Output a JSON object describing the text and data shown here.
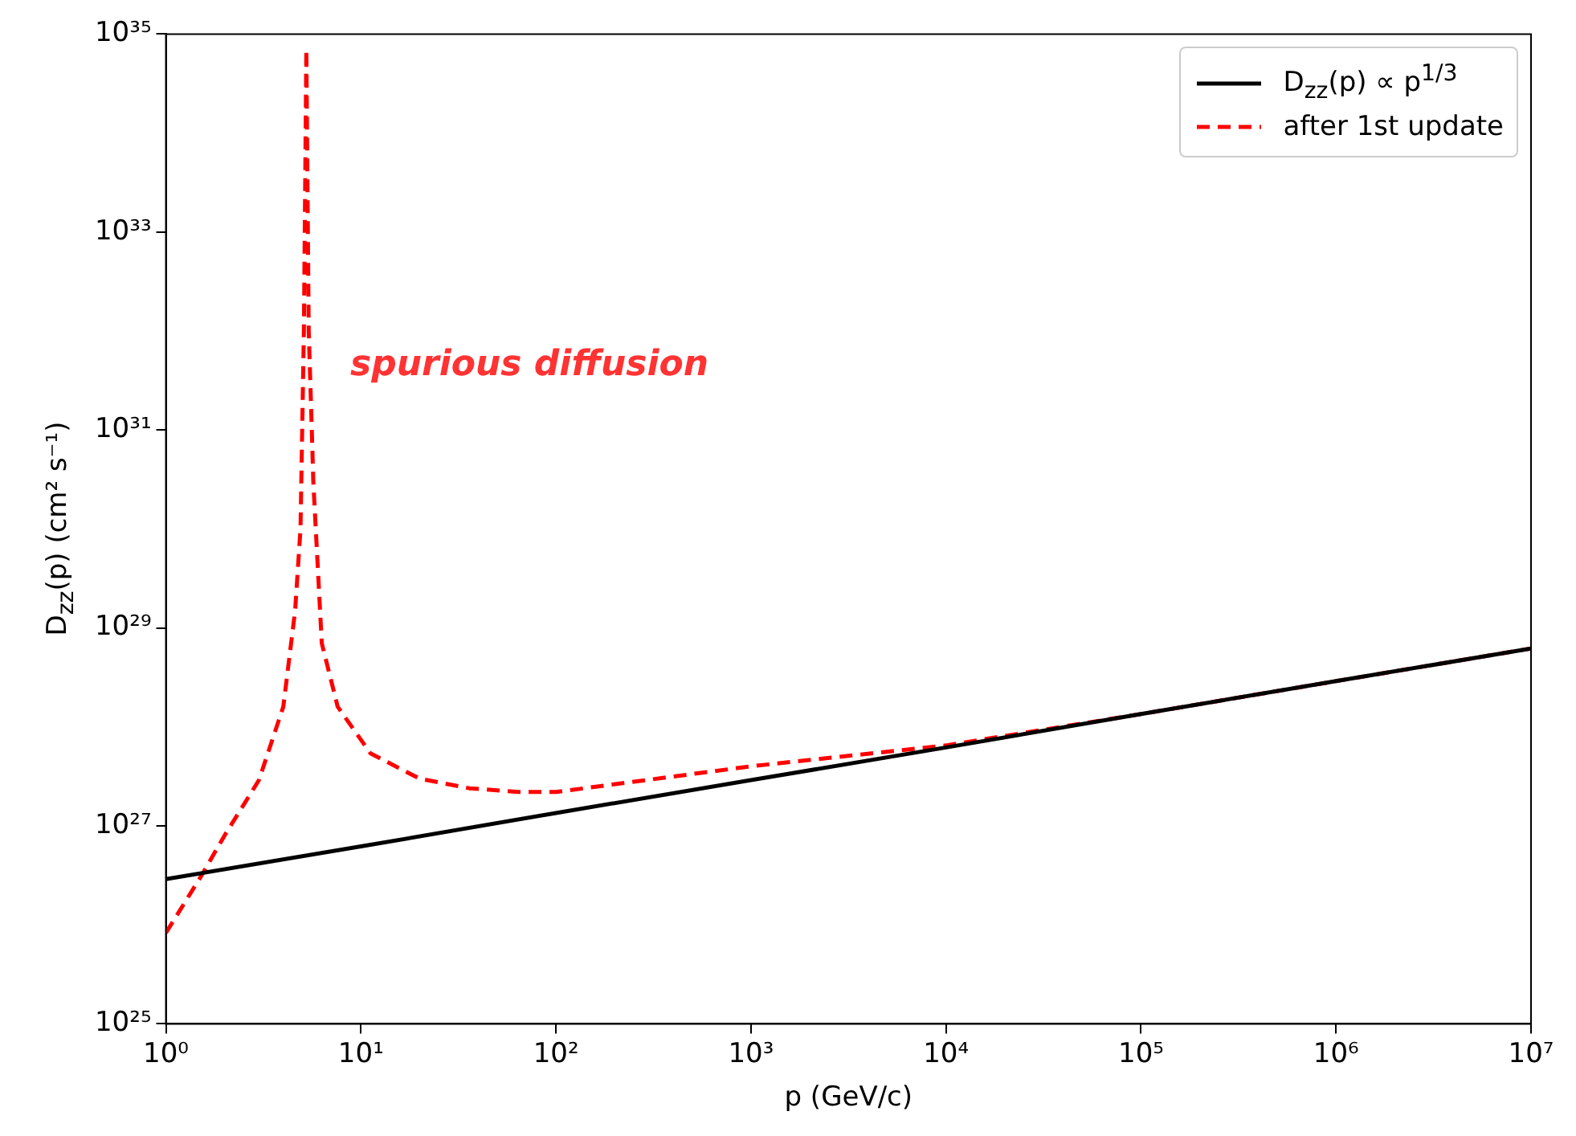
{
  "chart_data": {
    "type": "line",
    "xlabel": "p (GeV/c)",
    "ylabel": "D$_{zz}$(p) (cm² s⁻¹)",
    "log": "xy",
    "grid": false,
    "legend": "top right",
    "marker": "none",
    "xlim": [
      1,
      10000000
    ],
    "ylim": [
      1e+25,
      1e+35
    ],
    "xticks": [
      {
        "value": 1,
        "label": "10⁰"
      },
      {
        "value": 10,
        "label": "10¹"
      },
      {
        "value": 100,
        "label": "10²"
      },
      {
        "value": 1000,
        "label": "10³"
      },
      {
        "value": 10000,
        "label": "10⁴"
      },
      {
        "value": 100000,
        "label": "10⁵"
      },
      {
        "value": 1000000,
        "label": "10⁶"
      },
      {
        "value": 10000000,
        "label": "10⁷"
      }
    ],
    "yticks": [
      {
        "value": 1e+25,
        "label": "10²⁵"
      },
      {
        "value": 1e+27,
        "label": "10²⁷"
      },
      {
        "value": 1e+29,
        "label": "10²⁹"
      },
      {
        "value": 1e+31,
        "label": "10³¹"
      },
      {
        "value": 1e+33,
        "label": "10³³"
      },
      {
        "value": 1e+35,
        "label": "10³⁵"
      }
    ],
    "series": [
      {
        "name": "D$_{zz}$(p) ∝ p$^{1/3}$",
        "color": "#000000",
        "line_style": "solid",
        "x": [
          1,
          10,
          100,
          1000,
          10000,
          100000,
          1000000,
          10000000
        ],
        "values": [
          2.9e+26,
          6.2e+26,
          1.35e+27,
          2.9e+27,
          6.2e+27,
          1.35e+28,
          2.9e+28,
          6.2e+28
        ]
      },
      {
        "name": "after 1st update",
        "color": "#ff0000",
        "line_style": "dashed",
        "x": [
          1,
          1.5,
          2,
          3,
          4,
          4.6,
          4.9,
          5.1,
          5.25,
          5.4,
          5.6,
          5.7,
          6.3,
          7.6,
          11.2,
          20,
          36,
          64,
          100,
          1000,
          10000,
          100000,
          1000000,
          10000000
        ],
        "values": [
          8.3e+25,
          3e+26,
          8e+26,
          2.9e+27,
          1.6e+28,
          1.5e+29,
          1e+30,
          1e+32,
          7e+34,
          1e+32,
          1e+31,
          3e+30,
          7e+28,
          1.6e+28,
          5.4e+27,
          3e+27,
          2.4e+27,
          2.2e+27,
          2.2e+27,
          4e+27,
          6.5e+27,
          1.35e+28,
          2.9e+28,
          6.2e+28
        ]
      }
    ],
    "annotations": [
      "spurious diffusion"
    ]
  }
}
